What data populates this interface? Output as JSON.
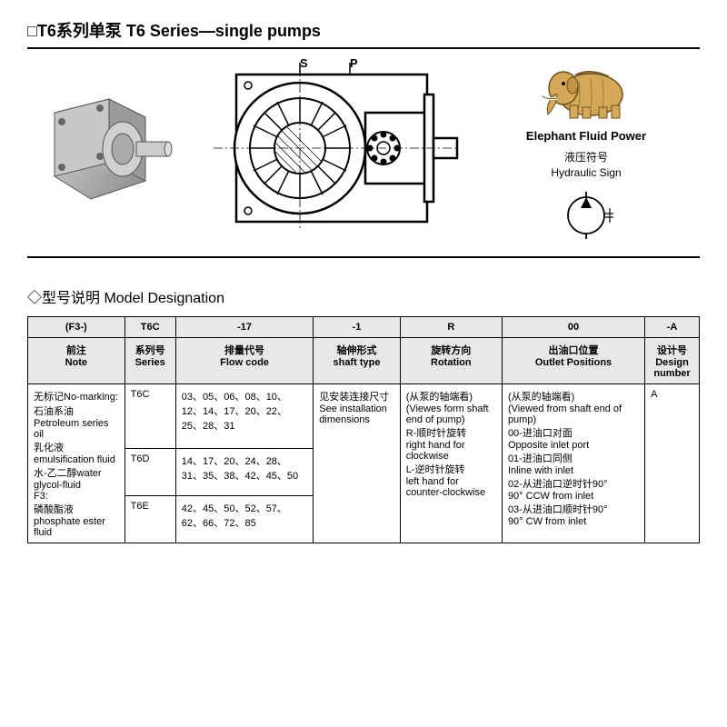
{
  "title": "□T6系列单泵 T6 Series—single pumps",
  "brand": "Elephant Fluid Power",
  "sign_label_cn": "液压符号",
  "sign_label_en": "Hydraulic Sign",
  "cross_labels": {
    "s": "S",
    "p": "P"
  },
  "section_title": "◇型号说明 Model Designation",
  "headers": {
    "c1": "(F3-)",
    "c2": "T6C",
    "c3": "-17",
    "c4": "-1",
    "c5": "R",
    "c6": "00",
    "c7": "-A"
  },
  "subheaders": {
    "c1": "前注\nNote",
    "c2": "系列号\nSeries",
    "c3": "排量代号\nFlow code",
    "c4": "轴伸形式\nshaft type",
    "c5": "旋转方向\nRotation",
    "c6": "出油口位置\nOutlet Positions",
    "c7": "设计号\nDesign number"
  },
  "note_text": "无标记No-marking:\n石油系油\nPetroleum series oil\n乳化液\nemulsification fluid\n水-乙二醇water glycol-fluid\nF3:\n磷酸酯液\nphosphate ester fluid",
  "series": {
    "r1": "T6C",
    "r2": "T6D",
    "r3": "T6E"
  },
  "flow": {
    "r1": "03、05、06、08、10、12、14、17、20、22、25、28、31",
    "r2": "14、17、20、24、28、31、35、38、42、45、50",
    "r3": "42、45、50、52、57、62、66、72、85"
  },
  "shaft_type": "见安装连接尺寸\nSee installation dimensions",
  "rotation": "(从泵的轴端看)\n(Viewes form shaft end of pump)\nR-顺时针旋转\nright hand for clockwise\nL-逆时针旋转\nleft hand for counter-clockwise",
  "outlet": "(从泵的轴端看)\n(Viewed from shaft end of pump)\n00-进油口对面\nOpposite inlet port\n01-进油口同侧\nInline with inlet\n02-从进油口逆时针90°\n90° CCW from inlet\n03-从进油口顺时针90°\n90° CW from inlet",
  "design": "A",
  "colors": {
    "header_bg": "#e8e8e8",
    "border": "#000000",
    "elephant_body": "#d4a857",
    "elephant_dark": "#9c7a3a",
    "pump_body": "#b8b8b8"
  }
}
